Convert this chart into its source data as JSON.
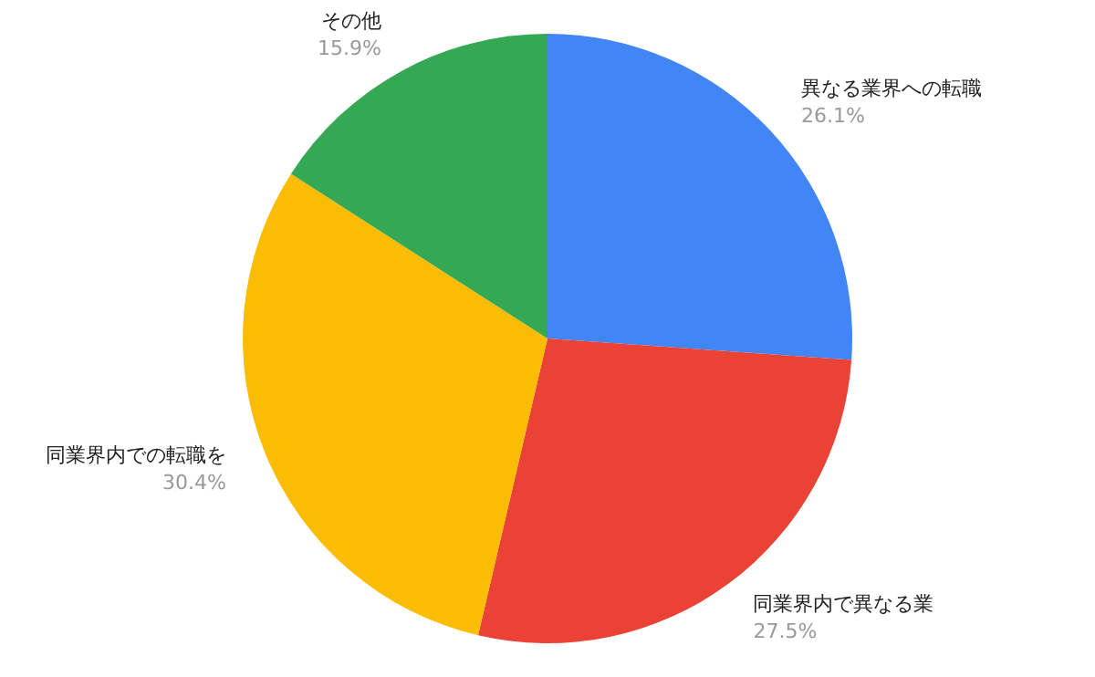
{
  "chart_data": {
    "type": "pie",
    "categories": [
      "異なる業界への転職",
      "同業界内で異なる業",
      "同業界内での転職を",
      "その他"
    ],
    "values": [
      26.1,
      27.5,
      30.4,
      15.9
    ],
    "value_labels": [
      "26.1%",
      "27.5%",
      "30.4%",
      "15.9%"
    ],
    "colors": [
      "#4285f4",
      "#ea4335",
      "#fbbc04",
      "#34a853"
    ],
    "legend": false
  }
}
